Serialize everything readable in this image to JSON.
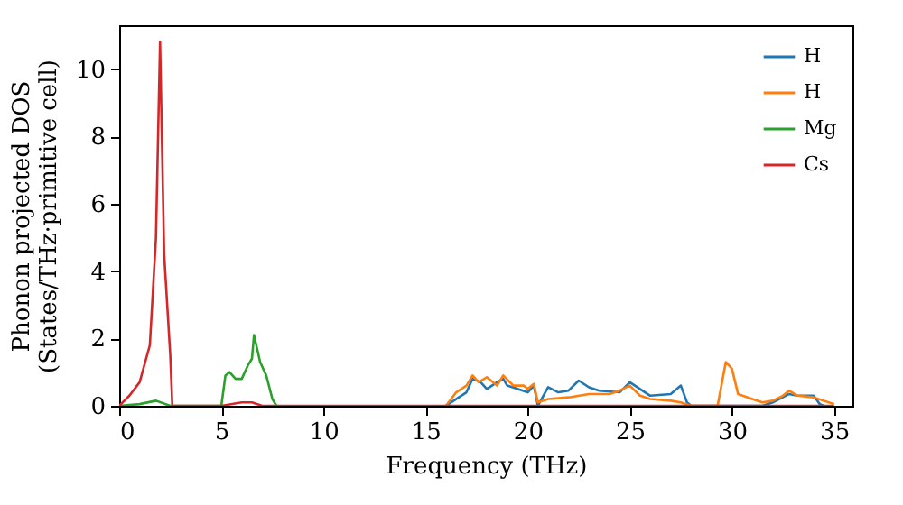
{
  "chart_data": {
    "type": "line",
    "xlabel": "Frequency (THz)",
    "ylabel": "Phonon projected DOS\n(States/THz·primitive cell)",
    "xlim": [
      0,
      35.9
    ],
    "ylim": [
      0,
      11.3
    ],
    "xticks": [
      0,
      5,
      10,
      15,
      20,
      25,
      30,
      35
    ],
    "yticks": [
      0,
      2,
      4,
      6,
      8,
      10
    ],
    "grid": false,
    "legend": "top right",
    "series": [
      {
        "name": "H",
        "color": "#1f77b4",
        "x": [
          16,
          17,
          17.3,
          17.7,
          18,
          18.5,
          18.8,
          19,
          19.5,
          20,
          20.3,
          20.5,
          21,
          21.5,
          22,
          22.5,
          23,
          23.5,
          24.5,
          25,
          25.5,
          26,
          27,
          27.5,
          27.8,
          28,
          29.5,
          31.5,
          32,
          32.8,
          33.2,
          34,
          34.3,
          34.5
        ],
        "values": [
          0,
          0.4,
          0.8,
          0.7,
          0.5,
          0.7,
          0.8,
          0.6,
          0.5,
          0.4,
          0.6,
          0,
          0.55,
          0.4,
          0.45,
          0.75,
          0.55,
          0.45,
          0.4,
          0.7,
          0.5,
          0.3,
          0.35,
          0.6,
          0.1,
          0,
          0,
          0,
          0.1,
          0.35,
          0.3,
          0.3,
          0.05,
          0
        ]
      },
      {
        "name": "H",
        "color": "#ff7f0e",
        "x": [
          16,
          16.5,
          17,
          17.3,
          17.6,
          18,
          18.5,
          18.8,
          19.3,
          19.8,
          20,
          20.3,
          20.5,
          21,
          22,
          23,
          24,
          24.5,
          25,
          25.5,
          26,
          27,
          27.5,
          28,
          29.3,
          29.7,
          30,
          30.3,
          31,
          31.5,
          32,
          32.5,
          32.8,
          33.2,
          34,
          35
        ],
        "values": [
          0,
          0.4,
          0.6,
          0.9,
          0.7,
          0.85,
          0.6,
          0.9,
          0.6,
          0.6,
          0.5,
          0.65,
          0.1,
          0.2,
          0.25,
          0.35,
          0.35,
          0.45,
          0.6,
          0.3,
          0.2,
          0.15,
          0.1,
          0,
          0,
          1.3,
          1.1,
          0.35,
          0.2,
          0.1,
          0.15,
          0.3,
          0.45,
          0.3,
          0.25,
          0.05
        ]
      },
      {
        "name": "Mg",
        "color": "#2ca02c",
        "x": [
          0,
          1,
          1.8,
          2.5,
          5,
          5.2,
          5.4,
          5.7,
          6,
          6.3,
          6.5,
          6.6,
          6.9,
          7.2,
          7.5,
          7.7
        ],
        "values": [
          0,
          0.05,
          0.15,
          0,
          0,
          0.9,
          1,
          0.8,
          0.8,
          1.2,
          1.4,
          2.1,
          1.3,
          0.9,
          0.2,
          0
        ]
      },
      {
        "name": "Cs",
        "color": "#d62728",
        "x": [
          0,
          0.5,
          1,
          1.5,
          1.8,
          2,
          2.2,
          2.5,
          2.6,
          5,
          6,
          6.5,
          7,
          35
        ],
        "values": [
          0,
          0.3,
          0.7,
          1.8,
          5,
          10.8,
          4.5,
          1.5,
          0,
          0,
          0.1,
          0.1,
          0,
          0
        ]
      }
    ]
  }
}
